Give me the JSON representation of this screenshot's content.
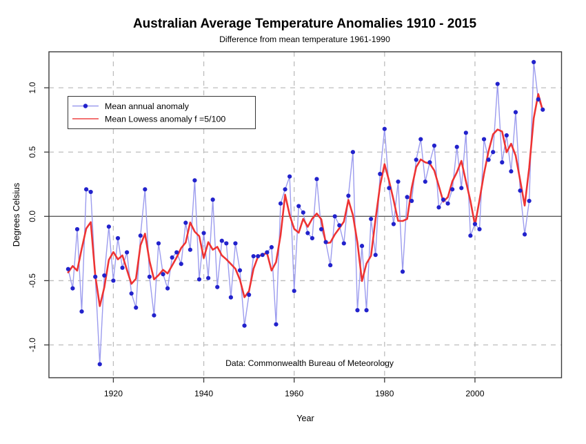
{
  "chart_data": {
    "type": "line",
    "title": "Australian Average Temperature Anomalies 1910 - 2015",
    "subtitle": "Difference from mean temperature 1961-1990",
    "xlabel": "Year",
    "ylabel": "Degrees Celsius",
    "annotation": "Data: Commonwealth Bureau of Meteorology",
    "grid": true,
    "legend_position": "top-left",
    "xlim": [
      1905.75,
      2019.15
    ],
    "ylim": [
      -1.255,
      1.28
    ],
    "x_ticks": [
      1920,
      1940,
      1960,
      1980,
      2000
    ],
    "y_ticks": [
      {
        "v": 1.0,
        "label": "1.0"
      },
      {
        "v": 0.5,
        "label": "0.5"
      },
      {
        "v": 0.0,
        "label": "0.0"
      },
      {
        "v": -0.5,
        "label": "-0.5"
      },
      {
        "v": -1.0,
        "label": "-1.0"
      }
    ],
    "x_start": 1910,
    "x_end": 2015,
    "x_step": 1,
    "series": [
      {
        "name": "Mean annual anomaly",
        "type": "points-with-line",
        "point_color": "#2222cc",
        "line_color": "#9b9bee",
        "values": [
          -0.41,
          -0.56,
          -0.1,
          -0.74,
          0.21,
          0.19,
          -0.47,
          -1.15,
          -0.46,
          -0.08,
          -0.5,
          -0.17,
          -0.4,
          -0.28,
          -0.6,
          -0.71,
          -0.15,
          0.21,
          -0.47,
          -0.77,
          -0.21,
          -0.45,
          -0.56,
          -0.32,
          -0.28,
          -0.37,
          -0.05,
          -0.26,
          0.28,
          -0.49,
          -0.13,
          -0.48,
          0.13,
          -0.55,
          -0.19,
          -0.21,
          -0.63,
          -0.21,
          -0.42,
          -0.85,
          -0.61,
          -0.31,
          -0.31,
          -0.3,
          -0.28,
          -0.24,
          -0.84,
          0.1,
          0.21,
          0.31,
          -0.58,
          0.08,
          0.03,
          -0.13,
          -0.17,
          0.29,
          -0.1,
          -0.2,
          -0.38,
          0.0,
          -0.07,
          -0.21,
          0.16,
          0.5,
          -0.73,
          -0.23,
          -0.73,
          -0.02,
          -0.3,
          0.33,
          0.68,
          0.22,
          -0.06,
          0.27,
          -0.43,
          0.15,
          0.12,
          0.44,
          0.6,
          0.27,
          0.42,
          0.55,
          0.07,
          0.13,
          0.1,
          0.21,
          0.54,
          0.22,
          0.65,
          -0.15,
          -0.06,
          -0.1,
          0.6,
          0.44,
          0.5,
          1.03,
          0.42,
          0.63,
          0.35,
          0.81,
          0.2,
          -0.14,
          0.12,
          1.2,
          0.91,
          0.83
        ]
      },
      {
        "name": "Mean Lowess anomaly f =5/100",
        "type": "lowess-smooth",
        "color": "#ee3333",
        "derived_from": "Mean annual anomaly",
        "f": "5/100"
      }
    ],
    "colors": {
      "annual_point": "#2222cc",
      "annual_line": "#9b9bee",
      "lowess_line": "#ee3333",
      "gridline": "#bdbdbd",
      "zero_line": "#5a5a5a",
      "frame": "#3a3a3a",
      "background": "#ffffff",
      "text": "#000000"
    }
  }
}
